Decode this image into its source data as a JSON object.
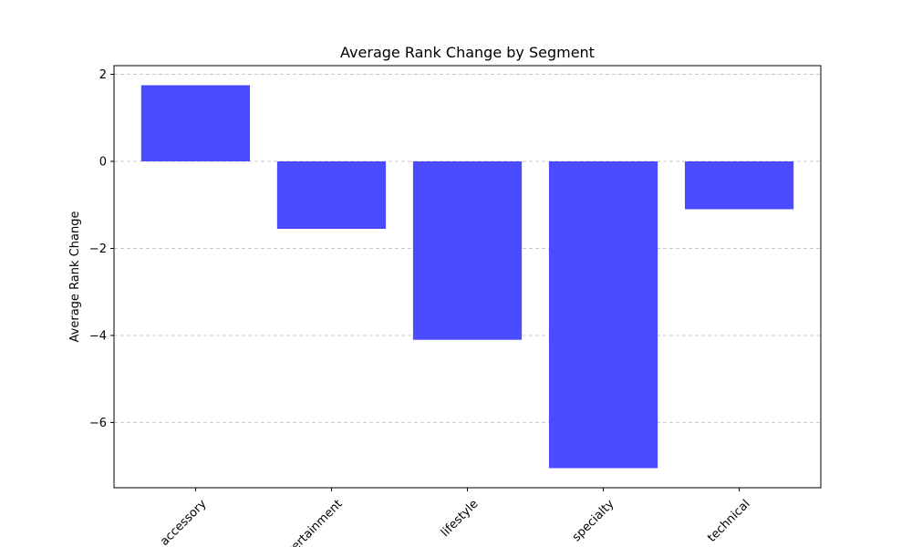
{
  "chart_data": {
    "type": "bar",
    "title": "Average Rank Change by Segment",
    "xlabel": "",
    "ylabel": "Average Rank Change",
    "categories": [
      "accessory",
      "entertainment",
      "lifestyle",
      "specialty",
      "technical"
    ],
    "values": [
      1.75,
      -1.55,
      -4.1,
      -7.05,
      -1.1
    ],
    "ylim": [
      -7.5,
      2.2
    ],
    "yticks": [
      2,
      0,
      -2,
      -4,
      -6
    ],
    "ytick_labels": [
      "2",
      "0",
      "−2",
      "−4",
      "−6"
    ],
    "grid": "y, dashed",
    "bar_color": "#4b4bff",
    "grid_color": "#c8c8c8"
  }
}
